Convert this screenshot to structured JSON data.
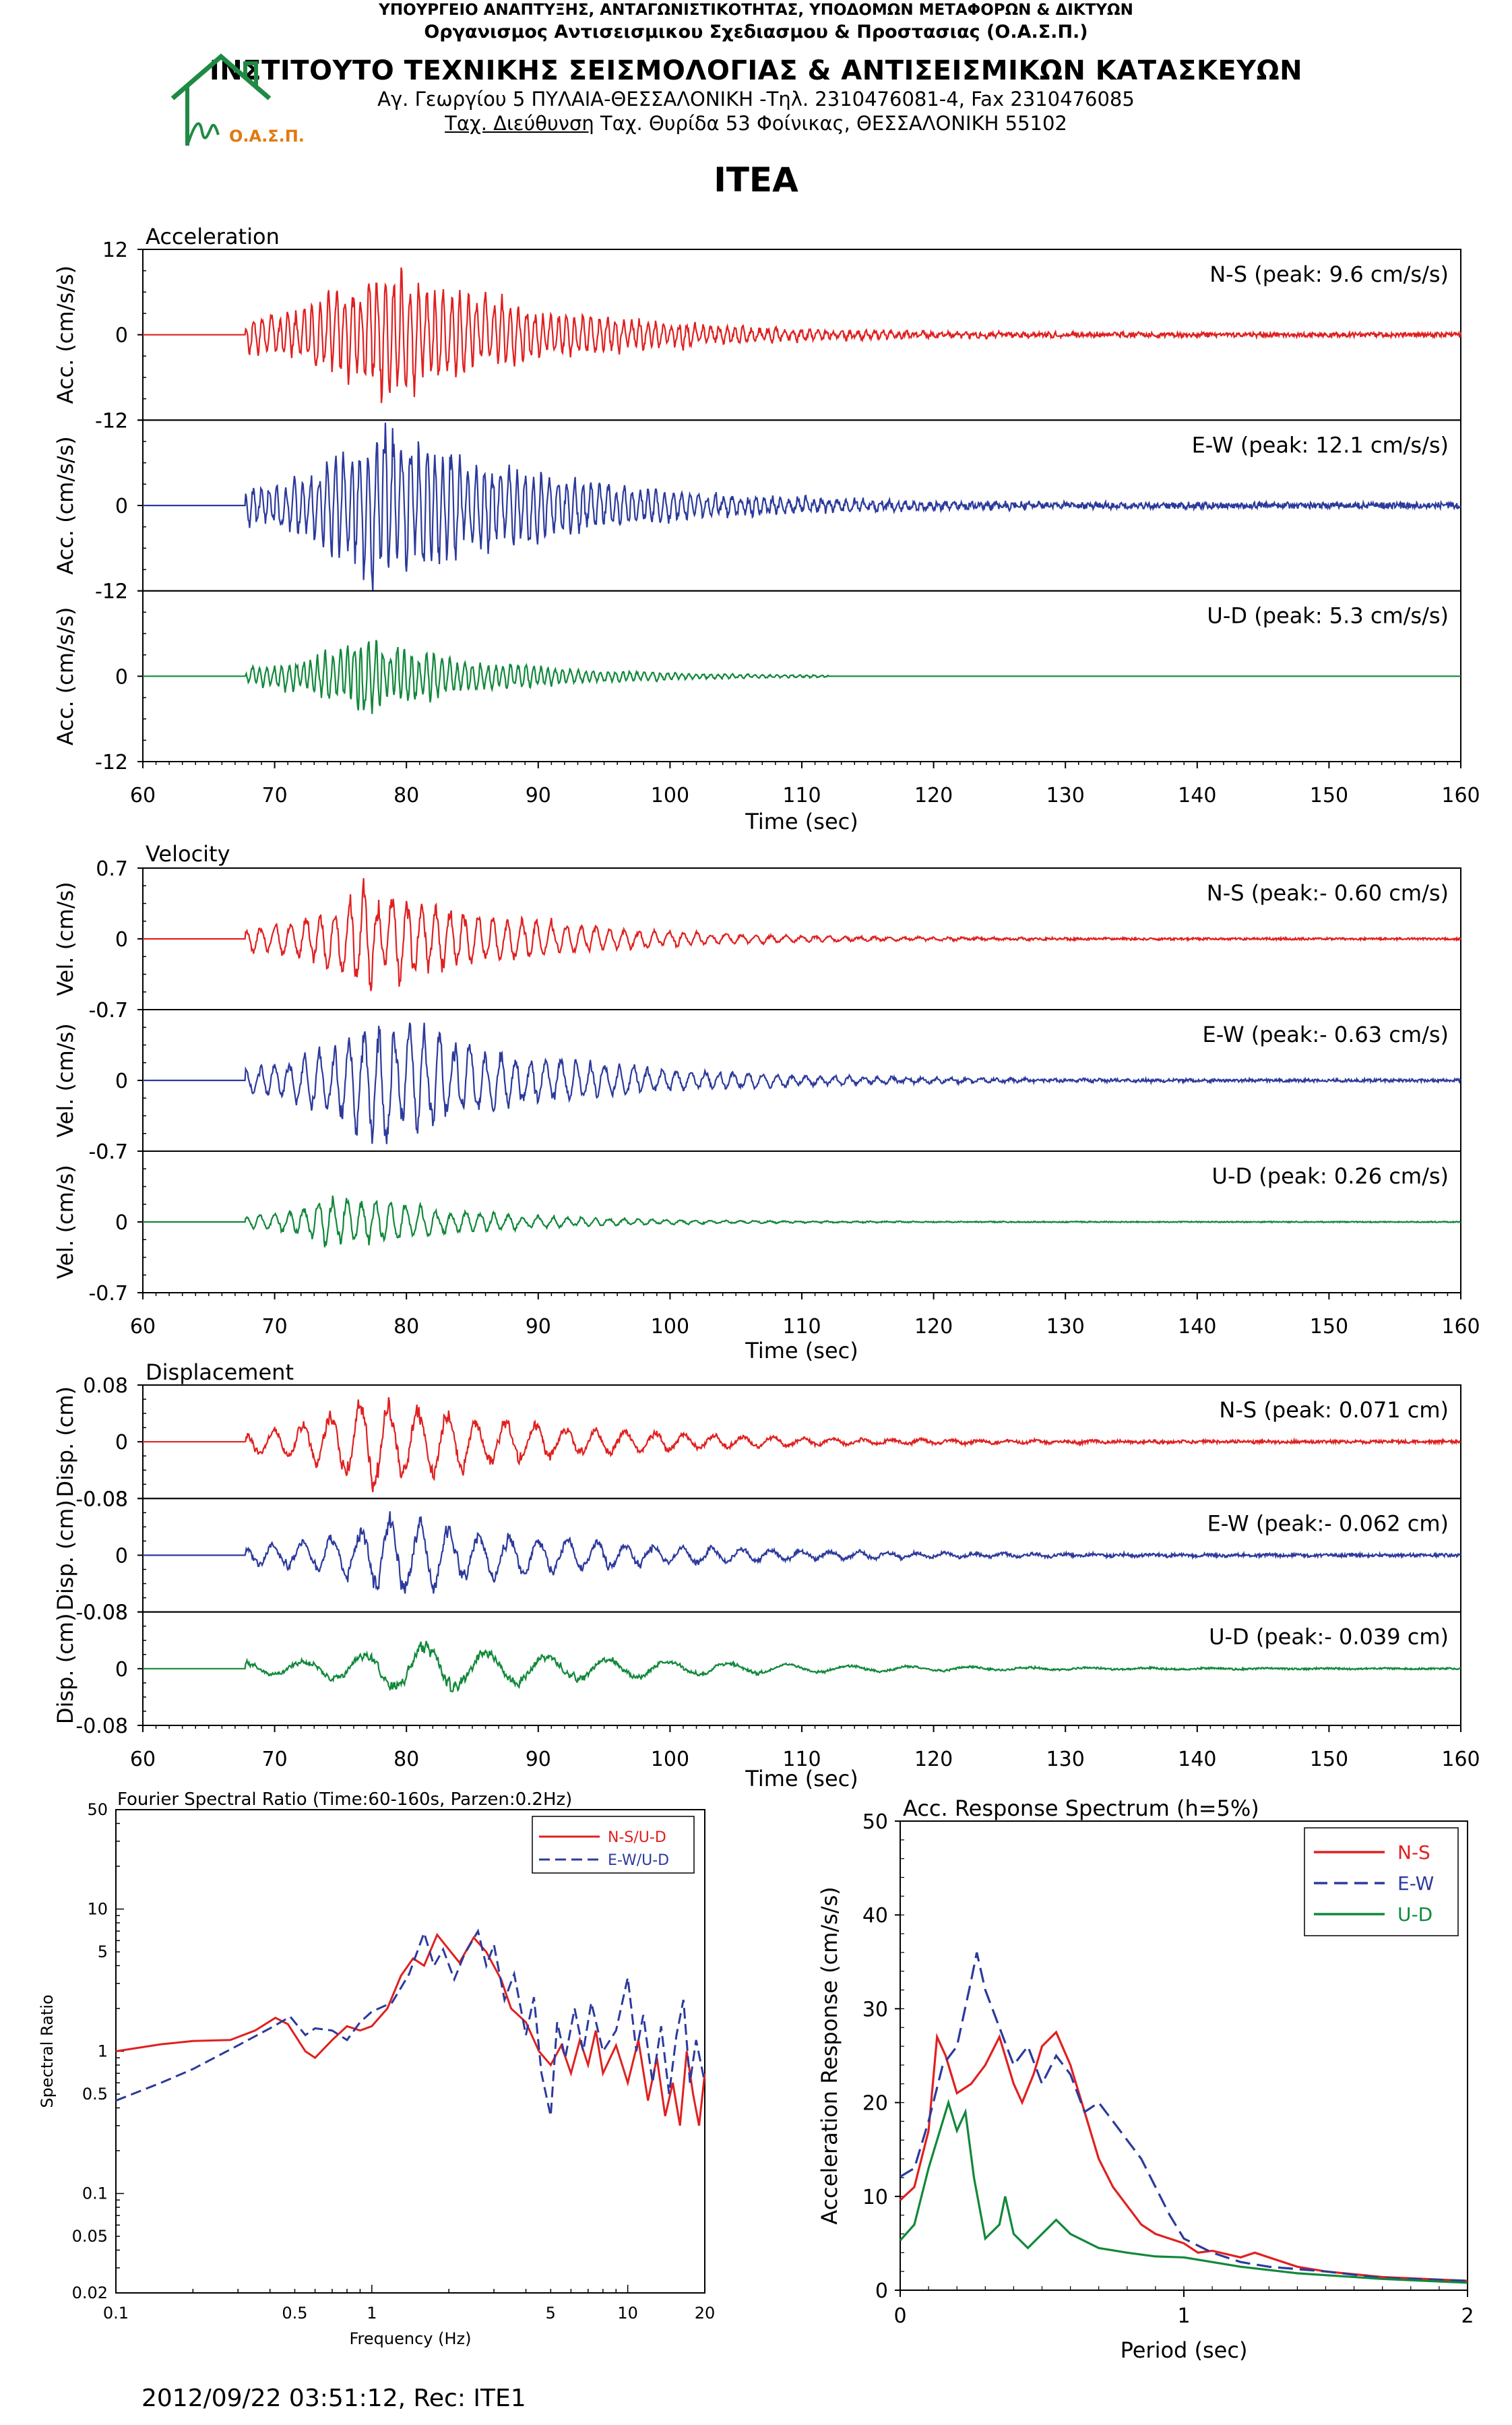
{
  "header": {
    "ministry": "ΥΠΟΥΡΓΕΙΟ ΑΝΑΠΤΥΞΗΣ, ΑΝΤΑΓΩΝΙΣΤΙΚΟΤΗΤΑΣ, ΥΠΟΔΟΜΩΝ ΜΕΤΑΦΟΡΩΝ & ΔΙΚΤΥΩΝ",
    "organization": "Οργανισμος Αντισεισμικου Σχεδιασμου & Προστασιας (Ο.Α.Σ.Π.)",
    "institute": "ΙΝΣΤΙΤΟΥΤΟ ΤΕΧΝΙΚΗΣ ΣΕΙΣΜΟΛΟΓΙΑΣ & ΑΝΤΙΣΕΙΣΜΙΚΩΝ ΚΑΤΑΣΚΕΥΩΝ",
    "address": "Αγ. Γεωργίου 5 ΠΥΛΑΙΑ-ΘΕΣΣΑΛΟΝΙΚΗ -Τηλ. 2310476081-4,  Fax 2310476085",
    "postal_label": "Ταχ. Διεύθυνση",
    "postal_address": " Ταχ. Θυρίδα 53 Φοίνικας, ΘΕΣΣΑΛΟΝΙΚΗ 55102",
    "logo_text": "Ο.Α.Σ.Π."
  },
  "station": "ITEA",
  "footer": "2012/09/22 03:51:12, Rec: ITE1",
  "colors": {
    "ns": "#e02020",
    "ew": "#2c3a9c",
    "ud": "#11883a",
    "logo": "#1e8a44",
    "logo_text": "#e07a10"
  },
  "chart_data": [
    {
      "type": "line",
      "title": "Acceleration",
      "xlabel": "Time (sec)",
      "xlim": [
        60,
        160
      ],
      "xticks": [
        60,
        70,
        80,
        90,
        100,
        110,
        120,
        130,
        140,
        150,
        160
      ],
      "ylabel": "Acc. (cm/s/s)",
      "ylim": [
        -12,
        12
      ],
      "yticks": [
        12,
        0,
        -12
      ],
      "series": [
        {
          "name": "N-S (peak: 9.6 cm/s/s)",
          "color": "#e02020",
          "peak": 9.6,
          "onset": 67.8,
          "peak_time": 78,
          "decay": 13,
          "noise": 0.25,
          "end": 160,
          "seed": 11,
          "freq": 1.6
        },
        {
          "name": "E-W (peak: 12.1 cm/s/s)",
          "color": "#2c3a9c",
          "peak": 12.1,
          "onset": 67.8,
          "peak_time": 78,
          "decay": 13,
          "noise": 0.35,
          "end": 160,
          "seed": 23,
          "freq": 1.6
        },
        {
          "name": "U-D (peak: 5.3 cm/s/s)",
          "color": "#11883a",
          "peak": 5.3,
          "onset": 67.8,
          "peak_time": 76.5,
          "decay": 10,
          "noise": 0.05,
          "end": 112,
          "seed": 37,
          "freq": 1.8
        }
      ]
    },
    {
      "type": "line",
      "title": "Velocity",
      "xlabel": "Time (sec)",
      "xlim": [
        60,
        160
      ],
      "xticks": [
        60,
        70,
        80,
        90,
        100,
        110,
        120,
        130,
        140,
        150,
        160
      ],
      "ylabel": "Vel. (cm/s)",
      "ylim": [
        -0.7,
        0.7
      ],
      "yticks": [
        0.7,
        0,
        -0.7
      ],
      "series": [
        {
          "name": "N-S (peak:- 0.60 cm/s)",
          "color": "#e02020",
          "peak": 0.6,
          "onset": 67.8,
          "peak_time": 77,
          "decay": 12,
          "noise": 0.01,
          "end": 160,
          "seed": 51,
          "freq": 0.9
        },
        {
          "name": "E-W (peak:- 0.63 cm/s)",
          "color": "#2c3a9c",
          "peak": 0.63,
          "onset": 67.8,
          "peak_time": 78,
          "decay": 13,
          "noise": 0.012,
          "end": 160,
          "seed": 63,
          "freq": 0.9
        },
        {
          "name": "U-D (peak: 0.26 cm/s)",
          "color": "#11883a",
          "peak": 0.26,
          "onset": 67.8,
          "peak_time": 75,
          "decay": 10,
          "noise": 0.004,
          "end": 160,
          "seed": 77,
          "freq": 0.9
        }
      ]
    },
    {
      "type": "line",
      "title": "Displacement",
      "xlabel": "Time (sec)",
      "xlim": [
        60,
        160
      ],
      "xticks": [
        60,
        70,
        80,
        90,
        100,
        110,
        120,
        130,
        140,
        150,
        160
      ],
      "ylabel": "Disp. (cm)",
      "ylim": [
        -0.08,
        0.08
      ],
      "yticks": [
        0.08,
        0,
        -0.08
      ],
      "series": [
        {
          "name": "N-S (peak: 0.071 cm)",
          "color": "#e02020",
          "peak": 0.071,
          "onset": 67.8,
          "peak_time": 77,
          "decay": 14,
          "noise": 0.002,
          "end": 160,
          "seed": 91,
          "freq": 0.45
        },
        {
          "name": "E-W (peak:- 0.062 cm)",
          "color": "#2c3a9c",
          "peak": 0.062,
          "onset": 67.8,
          "peak_time": 79,
          "decay": 15,
          "noise": 0.002,
          "end": 160,
          "seed": 103,
          "freq": 0.45
        },
        {
          "name": "U-D (peak:- 0.039 cm)",
          "color": "#11883a",
          "peak": 0.039,
          "onset": 67.8,
          "peak_time": 81,
          "decay": 16,
          "noise": 0.001,
          "end": 160,
          "seed": 117,
          "freq": 0.22
        }
      ]
    },
    {
      "type": "line",
      "title": "Fourier Spectral Ratio (Time:60-160s, Parzen:0.2Hz)",
      "xlabel": "Frequency (Hz)",
      "ylabel": "Spectral Ratio",
      "xscale": "log",
      "yscale": "log",
      "xlim": [
        0.1,
        20
      ],
      "ylim": [
        0.02,
        50
      ],
      "xticks": [
        0.1,
        0.5,
        1,
        5,
        10,
        20
      ],
      "xtick_labels": [
        "0.1",
        "0.5",
        "1",
        "5",
        "10",
        "20"
      ],
      "yticks": [
        0.02,
        0.05,
        0.1,
        0.5,
        1,
        5,
        10,
        50
      ],
      "ytick_labels": [
        "0.02",
        "0.05",
        "0.1",
        "0.5",
        "1",
        "5",
        "10",
        "50"
      ],
      "legend": "top-right",
      "series": [
        {
          "name": "N-S/U-D",
          "color": "#e02020",
          "dash": false,
          "points": [
            [
              0.1,
              1.0
            ],
            [
              0.15,
              1.12
            ],
            [
              0.2,
              1.18
            ],
            [
              0.28,
              1.2
            ],
            [
              0.35,
              1.4
            ],
            [
              0.42,
              1.72
            ],
            [
              0.47,
              1.55
            ],
            [
              0.55,
              1.0
            ],
            [
              0.6,
              0.9
            ],
            [
              0.7,
              1.2
            ],
            [
              0.8,
              1.5
            ],
            [
              0.9,
              1.4
            ],
            [
              1.0,
              1.5
            ],
            [
              1.15,
              2.0
            ],
            [
              1.3,
              3.4
            ],
            [
              1.45,
              4.5
            ],
            [
              1.6,
              4.0
            ],
            [
              1.8,
              6.6
            ],
            [
              2.0,
              5.2
            ],
            [
              2.2,
              4.2
            ],
            [
              2.5,
              6.3
            ],
            [
              2.8,
              5.0
            ],
            [
              3.2,
              3.2
            ],
            [
              3.5,
              2.0
            ],
            [
              4.0,
              1.6
            ],
            [
              4.5,
              1.0
            ],
            [
              5.0,
              0.8
            ],
            [
              5.5,
              1.1
            ],
            [
              6.0,
              0.7
            ],
            [
              6.5,
              1.2
            ],
            [
              7.0,
              0.8
            ],
            [
              7.5,
              1.4
            ],
            [
              8.0,
              0.7
            ],
            [
              9.0,
              1.1
            ],
            [
              10.0,
              0.6
            ],
            [
              11.0,
              1.2
            ],
            [
              12.0,
              0.45
            ],
            [
              13.0,
              0.9
            ],
            [
              14.0,
              0.35
            ],
            [
              15.0,
              0.6
            ],
            [
              16.0,
              0.3
            ],
            [
              17.0,
              1.0
            ],
            [
              18.0,
              0.5
            ],
            [
              19.0,
              0.3
            ],
            [
              20.0,
              0.7
            ]
          ]
        },
        {
          "name": "E-W/U-D",
          "color": "#2c3a9c",
          "dash": true,
          "points": [
            [
              0.1,
              0.45
            ],
            [
              0.15,
              0.6
            ],
            [
              0.2,
              0.75
            ],
            [
              0.3,
              1.1
            ],
            [
              0.4,
              1.45
            ],
            [
              0.48,
              1.75
            ],
            [
              0.55,
              1.3
            ],
            [
              0.6,
              1.45
            ],
            [
              0.7,
              1.4
            ],
            [
              0.8,
              1.2
            ],
            [
              0.9,
              1.6
            ],
            [
              1.0,
              1.9
            ],
            [
              1.2,
              2.2
            ],
            [
              1.4,
              3.5
            ],
            [
              1.6,
              6.8
            ],
            [
              1.75,
              4.0
            ],
            [
              1.9,
              5.2
            ],
            [
              2.1,
              3.2
            ],
            [
              2.3,
              4.8
            ],
            [
              2.6,
              7.0
            ],
            [
              2.8,
              4.0
            ],
            [
              3.0,
              5.6
            ],
            [
              3.3,
              2.3
            ],
            [
              3.6,
              3.5
            ],
            [
              4.0,
              1.3
            ],
            [
              4.3,
              2.4
            ],
            [
              4.6,
              0.7
            ],
            [
              5.0,
              0.35
            ],
            [
              5.3,
              1.6
            ],
            [
              5.7,
              0.9
            ],
            [
              6.2,
              2.0
            ],
            [
              6.7,
              1.0
            ],
            [
              7.2,
              2.2
            ],
            [
              8.0,
              1.0
            ],
            [
              9.0,
              1.4
            ],
            [
              10.0,
              3.3
            ],
            [
              10.8,
              1.0
            ],
            [
              11.5,
              1.8
            ],
            [
              12.5,
              0.6
            ],
            [
              13.5,
              1.5
            ],
            [
              14.5,
              0.5
            ],
            [
              15.5,
              1.3
            ],
            [
              16.5,
              2.3
            ],
            [
              17.5,
              0.6
            ],
            [
              18.5,
              1.2
            ],
            [
              20.0,
              0.6
            ]
          ]
        }
      ]
    },
    {
      "type": "line",
      "title": "Acc. Response Spectrum (h=5%)",
      "xlabel": "Period (sec)",
      "ylabel": "Acceleration Response (cm/s/s)",
      "xlim": [
        0,
        2
      ],
      "ylim": [
        0,
        50
      ],
      "xticks": [
        0,
        1,
        2
      ],
      "yticks": [
        0,
        10,
        20,
        30,
        40,
        50
      ],
      "legend": "top-right",
      "series": [
        {
          "name": "N-S",
          "color": "#e02020",
          "dash": false,
          "points": [
            [
              0.0,
              9.6
            ],
            [
              0.05,
              11
            ],
            [
              0.1,
              17
            ],
            [
              0.13,
              27
            ],
            [
              0.16,
              25
            ],
            [
              0.2,
              21
            ],
            [
              0.25,
              22
            ],
            [
              0.3,
              24
            ],
            [
              0.35,
              27
            ],
            [
              0.4,
              22
            ],
            [
              0.43,
              20
            ],
            [
              0.47,
              23
            ],
            [
              0.5,
              26
            ],
            [
              0.55,
              27.5
            ],
            [
              0.6,
              24
            ],
            [
              0.65,
              19
            ],
            [
              0.7,
              14
            ],
            [
              0.75,
              11
            ],
            [
              0.8,
              9
            ],
            [
              0.85,
              7
            ],
            [
              0.9,
              6
            ],
            [
              1.0,
              5
            ],
            [
              1.05,
              4
            ],
            [
              1.1,
              4.2
            ],
            [
              1.2,
              3.5
            ],
            [
              1.25,
              4
            ],
            [
              1.3,
              3.5
            ],
            [
              1.4,
              2.5
            ],
            [
              1.5,
              2
            ],
            [
              1.7,
              1.4
            ],
            [
              2.0,
              1.0
            ]
          ]
        },
        {
          "name": "E-W",
          "color": "#2c3a9c",
          "dash": true,
          "points": [
            [
              0.0,
              12.1
            ],
            [
              0.05,
              13
            ],
            [
              0.1,
              18
            ],
            [
              0.15,
              24
            ],
            [
              0.2,
              26
            ],
            [
              0.25,
              33
            ],
            [
              0.27,
              36
            ],
            [
              0.3,
              32
            ],
            [
              0.35,
              28
            ],
            [
              0.4,
              24
            ],
            [
              0.45,
              26
            ],
            [
              0.5,
              22
            ],
            [
              0.55,
              25
            ],
            [
              0.6,
              23
            ],
            [
              0.65,
              19
            ],
            [
              0.7,
              20
            ],
            [
              0.75,
              18
            ],
            [
              0.8,
              16
            ],
            [
              0.85,
              14
            ],
            [
              0.9,
              11
            ],
            [
              0.95,
              8
            ],
            [
              1.0,
              5.5
            ],
            [
              1.1,
              4
            ],
            [
              1.2,
              3
            ],
            [
              1.3,
              2.5
            ],
            [
              1.5,
              2
            ],
            [
              1.7,
              1.3
            ],
            [
              2.0,
              1.0
            ]
          ]
        },
        {
          "name": "U-D",
          "color": "#11883a",
          "dash": false,
          "points": [
            [
              0.0,
              5.3
            ],
            [
              0.05,
              7
            ],
            [
              0.1,
              13
            ],
            [
              0.15,
              18
            ],
            [
              0.17,
              20
            ],
            [
              0.2,
              17
            ],
            [
              0.23,
              19
            ],
            [
              0.26,
              12
            ],
            [
              0.3,
              5.5
            ],
            [
              0.35,
              7
            ],
            [
              0.37,
              10
            ],
            [
              0.4,
              6
            ],
            [
              0.45,
              4.5
            ],
            [
              0.5,
              6
            ],
            [
              0.55,
              7.5
            ],
            [
              0.6,
              6
            ],
            [
              0.7,
              4.5
            ],
            [
              0.8,
              4
            ],
            [
              0.9,
              3.6
            ],
            [
              1.0,
              3.5
            ],
            [
              1.2,
              2.5
            ],
            [
              1.4,
              1.8
            ],
            [
              1.7,
              1.2
            ],
            [
              2.0,
              0.8
            ]
          ]
        }
      ]
    }
  ]
}
